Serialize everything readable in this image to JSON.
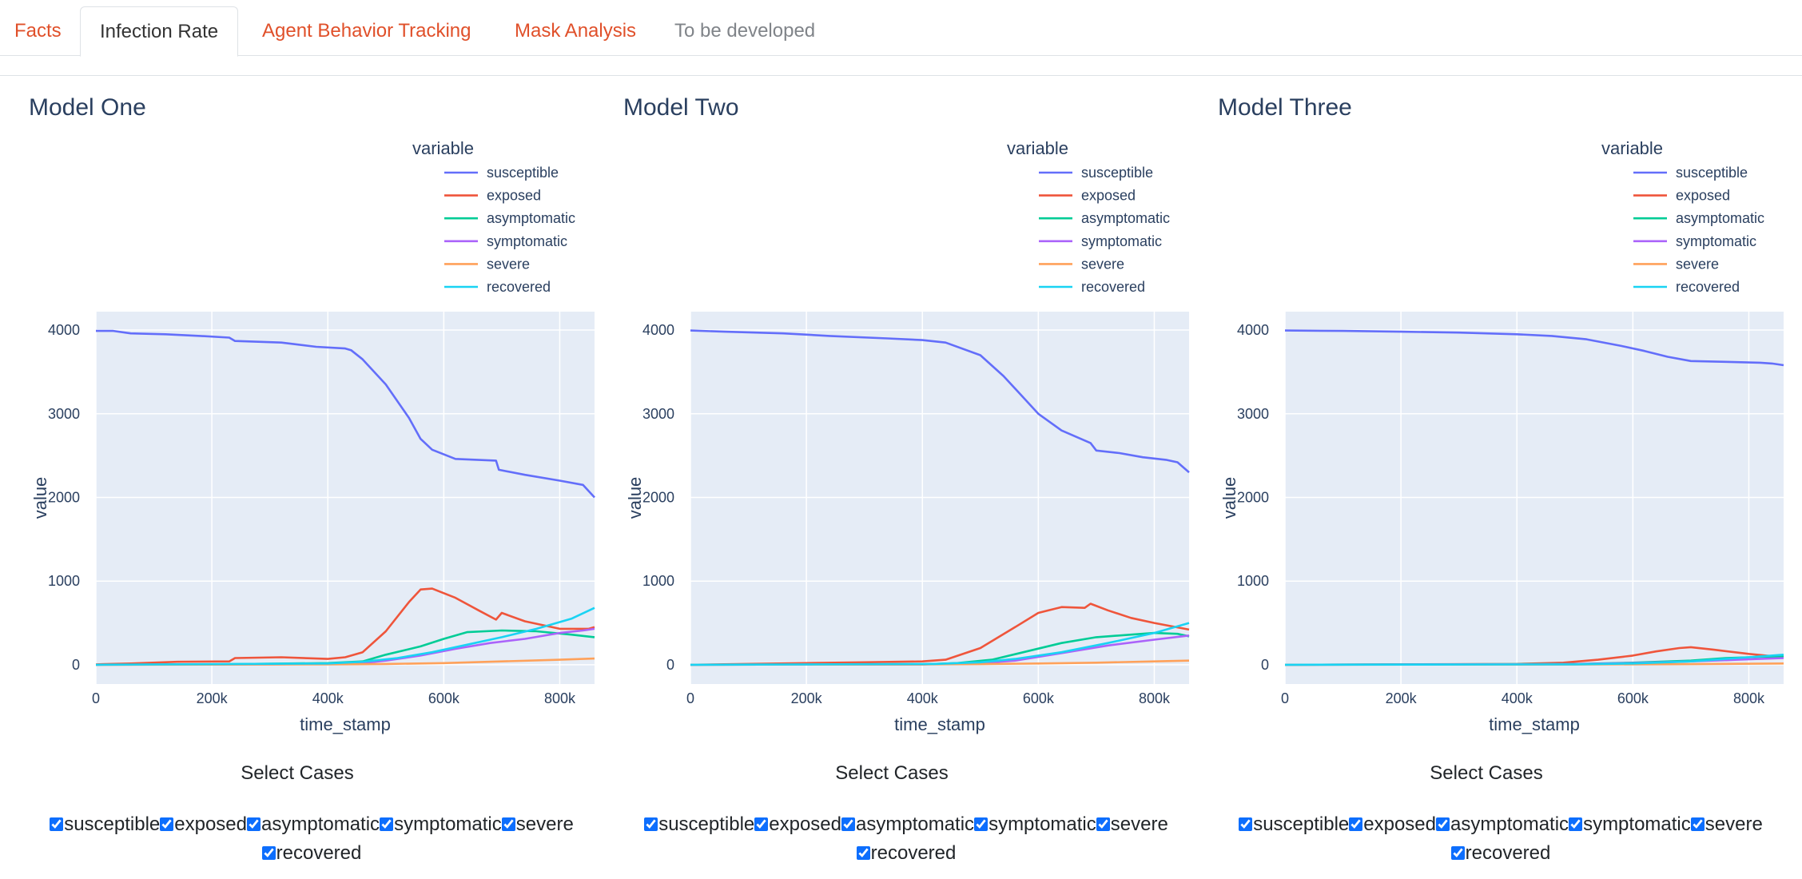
{
  "tabs": [
    {
      "label": "Facts",
      "state": "link"
    },
    {
      "label": "Infection Rate",
      "state": "active"
    },
    {
      "label": "Agent Behavior Tracking",
      "state": "link"
    },
    {
      "label": "Mask Analysis",
      "state": "link"
    },
    {
      "label": "To be developed",
      "state": "disabled"
    }
  ],
  "select_cases_label": "Select Cases",
  "case_options": [
    "susceptible",
    "exposed",
    "asymptomatic",
    "symptomatic",
    "severe",
    "recovered"
  ],
  "colors": {
    "susceptible": "#636efa",
    "exposed": "#ef553b",
    "asymptomatic": "#00cc96",
    "symptomatic": "#ab63fa",
    "severe": "#ffa15a",
    "recovered": "#19d3f3",
    "plot_bg": "#e5ecf6",
    "tab_link": "#e0502a"
  },
  "chart_data": [
    {
      "type": "line",
      "title": "Model One",
      "xlabel": "time_stamp",
      "ylabel": "value",
      "legend_title": "variable",
      "legend_position": "top-right",
      "xlim": [
        0,
        860000
      ],
      "ylim": [
        -230,
        4220
      ],
      "xticks": [
        0,
        200000,
        400000,
        600000,
        800000
      ],
      "xtick_labels": [
        "0",
        "200k",
        "400k",
        "600k",
        "800k"
      ],
      "yticks": [
        0,
        1000,
        2000,
        3000,
        4000
      ],
      "ytick_labels": [
        "0",
        "1000",
        "2000",
        "3000",
        "4000"
      ],
      "grid": true,
      "series": [
        {
          "name": "susceptible",
          "x": [
            0,
            30000,
            60000,
            120000,
            180000,
            230000,
            240000,
            320000,
            380000,
            430000,
            440000,
            460000,
            500000,
            540000,
            560000,
            580000,
            620000,
            690000,
            695000,
            740000,
            800000,
            840000,
            860000
          ],
          "y": [
            3990,
            3990,
            3960,
            3950,
            3930,
            3910,
            3870,
            3850,
            3800,
            3780,
            3760,
            3650,
            3350,
            2950,
            2700,
            2570,
            2460,
            2440,
            2330,
            2270,
            2200,
            2150,
            2000
          ]
        },
        {
          "name": "exposed",
          "x": [
            0,
            60000,
            140000,
            230000,
            240000,
            320000,
            400000,
            430000,
            460000,
            500000,
            540000,
            560000,
            580000,
            620000,
            660000,
            690000,
            700000,
            740000,
            800000,
            850000,
            860000
          ],
          "y": [
            5,
            15,
            35,
            40,
            80,
            90,
            70,
            90,
            150,
            400,
            750,
            900,
            910,
            800,
            650,
            540,
            620,
            520,
            430,
            430,
            450
          ]
        },
        {
          "name": "asymptomatic",
          "x": [
            0,
            200000,
            400000,
            460000,
            500000,
            560000,
            600000,
            640000,
            700000,
            760000,
            820000,
            860000
          ],
          "y": [
            0,
            5,
            20,
            40,
            120,
            220,
            310,
            390,
            410,
            400,
            360,
            330
          ]
        },
        {
          "name": "symptomatic",
          "x": [
            0,
            300000,
            400000,
            460000,
            500000,
            560000,
            620000,
            680000,
            740000,
            800000,
            840000,
            860000
          ],
          "y": [
            0,
            5,
            10,
            20,
            50,
            110,
            190,
            260,
            310,
            380,
            410,
            430
          ]
        },
        {
          "name": "severe",
          "x": [
            0,
            400000,
            500000,
            600000,
            700000,
            800000,
            860000
          ],
          "y": [
            0,
            5,
            10,
            20,
            40,
            60,
            75
          ]
        },
        {
          "name": "recovered",
          "x": [
            0,
            400000,
            460000,
            520000,
            580000,
            640000,
            700000,
            760000,
            820000,
            860000
          ],
          "y": [
            0,
            15,
            35,
            80,
            150,
            240,
            330,
            430,
            550,
            680
          ]
        }
      ]
    },
    {
      "type": "line",
      "title": "Model Two",
      "xlabel": "time_stamp",
      "ylabel": "value",
      "legend_title": "variable",
      "legend_position": "top-right",
      "xlim": [
        0,
        860000
      ],
      "ylim": [
        -230,
        4220
      ],
      "xticks": [
        0,
        200000,
        400000,
        600000,
        800000
      ],
      "xtick_labels": [
        "0",
        "200k",
        "400k",
        "600k",
        "800k"
      ],
      "yticks": [
        0,
        1000,
        2000,
        3000,
        4000
      ],
      "ytick_labels": [
        "0",
        "1000",
        "2000",
        "3000",
        "4000"
      ],
      "grid": true,
      "series": [
        {
          "name": "susceptible",
          "x": [
            0,
            60000,
            160000,
            240000,
            340000,
            400000,
            440000,
            500000,
            540000,
            580000,
            600000,
            640000,
            690000,
            700000,
            740000,
            780000,
            820000,
            840000,
            860000
          ],
          "y": [
            3995,
            3980,
            3960,
            3930,
            3900,
            3880,
            3850,
            3700,
            3450,
            3150,
            3000,
            2800,
            2650,
            2560,
            2530,
            2480,
            2450,
            2420,
            2300
          ]
        },
        {
          "name": "exposed",
          "x": [
            0,
            200000,
            300000,
            400000,
            440000,
            500000,
            560000,
            600000,
            640000,
            680000,
            690000,
            720000,
            760000,
            800000,
            860000
          ],
          "y": [
            0,
            20,
            30,
            40,
            60,
            200,
            450,
            620,
            690,
            680,
            730,
            650,
            560,
            500,
            420
          ]
        },
        {
          "name": "asymptomatic",
          "x": [
            0,
            400000,
            460000,
            520000,
            580000,
            640000,
            700000,
            760000,
            800000,
            840000,
            860000
          ],
          "y": [
            0,
            5,
            20,
            60,
            160,
            260,
            330,
            360,
            380,
            370,
            340
          ]
        },
        {
          "name": "symptomatic",
          "x": [
            0,
            400000,
            500000,
            560000,
            640000,
            720000,
            800000,
            860000
          ],
          "y": [
            0,
            5,
            20,
            50,
            140,
            230,
            300,
            350
          ]
        },
        {
          "name": "severe",
          "x": [
            0,
            400000,
            500000,
            600000,
            700000,
            800000,
            860000
          ],
          "y": [
            0,
            5,
            8,
            15,
            25,
            40,
            50
          ]
        },
        {
          "name": "recovered",
          "x": [
            0,
            420000,
            500000,
            560000,
            640000,
            720000,
            800000,
            860000
          ],
          "y": [
            0,
            10,
            30,
            70,
            150,
            260,
            380,
            500
          ]
        }
      ]
    },
    {
      "type": "line",
      "title": "Model Three",
      "xlabel": "time_stamp",
      "ylabel": "value",
      "legend_title": "variable",
      "legend_position": "top-right",
      "xlim": [
        0,
        860000
      ],
      "ylim": [
        -230,
        4220
      ],
      "xticks": [
        0,
        200000,
        400000,
        600000,
        800000
      ],
      "xtick_labels": [
        "0",
        "200k",
        "400k",
        "600k",
        "800k"
      ],
      "yticks": [
        0,
        1000,
        2000,
        3000,
        4000
      ],
      "ytick_labels": [
        "0",
        "1000",
        "2000",
        "3000",
        "4000"
      ],
      "grid": true,
      "series": [
        {
          "name": "susceptible",
          "x": [
            0,
            100000,
            200000,
            300000,
            400000,
            460000,
            520000,
            580000,
            620000,
            660000,
            700000,
            760000,
            820000,
            840000,
            860000
          ],
          "y": [
            3995,
            3990,
            3980,
            3970,
            3950,
            3930,
            3890,
            3810,
            3750,
            3680,
            3630,
            3620,
            3610,
            3600,
            3580
          ]
        },
        {
          "name": "exposed",
          "x": [
            0,
            400000,
            480000,
            540000,
            600000,
            640000,
            680000,
            700000,
            740000,
            800000,
            860000
          ],
          "y": [
            0,
            10,
            25,
            60,
            110,
            160,
            200,
            210,
            180,
            130,
            90
          ]
        },
        {
          "name": "asymptomatic",
          "x": [
            0,
            500000,
            600000,
            700000,
            760000,
            820000,
            860000
          ],
          "y": [
            0,
            10,
            25,
            50,
            80,
            95,
            100
          ]
        },
        {
          "name": "symptomatic",
          "x": [
            0,
            500000,
            600000,
            700000,
            780000,
            860000
          ],
          "y": [
            0,
            8,
            20,
            40,
            60,
            80
          ]
        },
        {
          "name": "severe",
          "x": [
            0,
            500000,
            700000,
            860000
          ],
          "y": [
            0,
            3,
            8,
            15
          ]
        },
        {
          "name": "recovered",
          "x": [
            0,
            500000,
            600000,
            700000,
            780000,
            860000
          ],
          "y": [
            0,
            5,
            15,
            40,
            80,
            120
          ]
        }
      ]
    }
  ]
}
